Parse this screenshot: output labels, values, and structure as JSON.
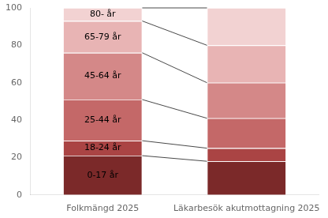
{
  "chart_data": {
    "type": "bar",
    "stacked": true,
    "categories": [
      "Folkmängd 2025",
      "Läkarbesök akutmottagning 2025"
    ],
    "series": [
      {
        "name": "0-17 år",
        "color": "#7b2929",
        "values": [
          21,
          18
        ]
      },
      {
        "name": "18-24 år",
        "color": "#aa4444",
        "values": [
          8,
          7
        ]
      },
      {
        "name": "25-44 år",
        "color": "#c46868",
        "values": [
          22,
          16
        ]
      },
      {
        "name": "45-64 år",
        "color": "#d48888",
        "values": [
          25,
          19
        ]
      },
      {
        "name": "65-79 år",
        "color": "#e8b4b4",
        "values": [
          17,
          20
        ]
      },
      {
        "name": "80- år",
        "color": "#f2d2d2",
        "values": [
          7,
          20
        ]
      }
    ],
    "ylim": [
      0,
      100
    ],
    "yticks": [
      0,
      20,
      40,
      60,
      80,
      100
    ],
    "grid": false
  }
}
